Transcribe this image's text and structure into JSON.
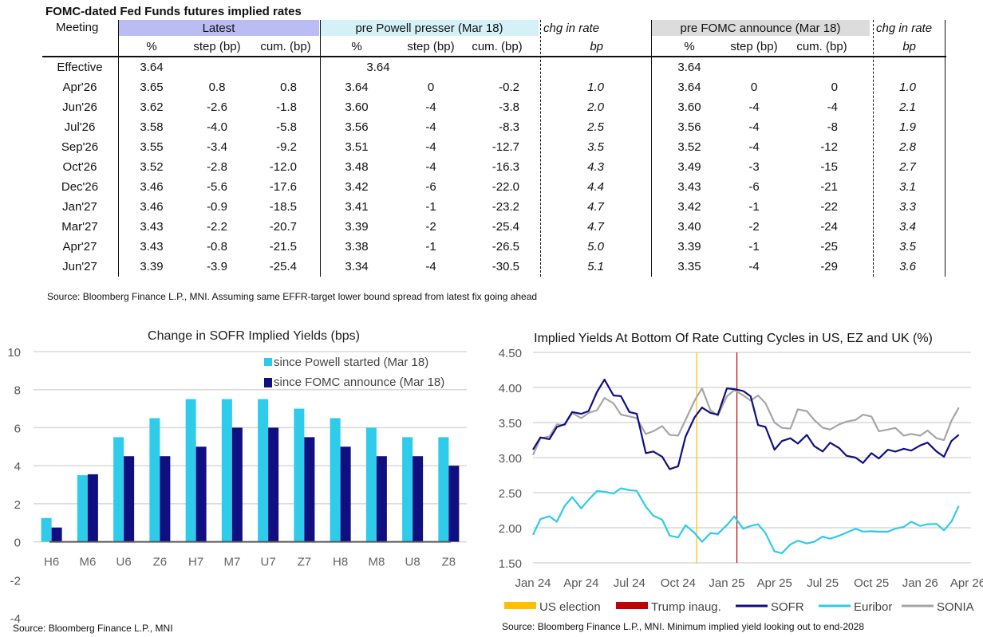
{
  "table": {
    "title": "FOMC-dated Fed Funds futures implied rates",
    "header_meeting": "Meeting",
    "groups": {
      "latest": "Latest",
      "powell": "pre Powell presser (Mar 18)",
      "chg1": "chg in rate",
      "fomc": "pre FOMC announce (Mar 18)",
      "chg2": "chg in rate"
    },
    "subheaders": {
      "pct": "%",
      "step": "step (bp)",
      "cum": "cum. (bp)",
      "bp": "bp"
    },
    "colors": {
      "latest": "#bcbcf4",
      "powell": "#d5f1f8",
      "fomc": "#dcdcdc"
    },
    "rows": [
      {
        "meeting": "Effective",
        "l_pct": "3.64",
        "l_step": "",
        "l_cum": "",
        "p_pct": "3.64",
        "p_step": "",
        "p_cum": "",
        "chg1": "",
        "f_pct": "3.64",
        "f_step": "",
        "f_cum": "",
        "chg2": ""
      },
      {
        "meeting": "Apr'26",
        "l_pct": "3.65",
        "l_step": "0.8",
        "l_cum": "0.8",
        "p_pct": "3.64",
        "p_step": "0",
        "p_cum": "-0.2",
        "chg1": "1.0",
        "f_pct": "3.64",
        "f_step": "0",
        "f_cum": "0",
        "chg2": "1.0"
      },
      {
        "meeting": "Jun'26",
        "l_pct": "3.62",
        "l_step": "-2.6",
        "l_cum": "-1.8",
        "p_pct": "3.60",
        "p_step": "-4",
        "p_cum": "-3.8",
        "chg1": "2.0",
        "f_pct": "3.60",
        "f_step": "-4",
        "f_cum": "-4",
        "chg2": "2.1"
      },
      {
        "meeting": "Jul'26",
        "l_pct": "3.58",
        "l_step": "-4.0",
        "l_cum": "-5.8",
        "p_pct": "3.56",
        "p_step": "-4",
        "p_cum": "-8.3",
        "chg1": "2.5",
        "f_pct": "3.56",
        "f_step": "-4",
        "f_cum": "-8",
        "chg2": "1.9"
      },
      {
        "meeting": "Sep'26",
        "l_pct": "3.55",
        "l_step": "-3.4",
        "l_cum": "-9.2",
        "p_pct": "3.51",
        "p_step": "-4",
        "p_cum": "-12.7",
        "chg1": "3.5",
        "f_pct": "3.52",
        "f_step": "-4",
        "f_cum": "-12",
        "chg2": "2.8"
      },
      {
        "meeting": "Oct'26",
        "l_pct": "3.52",
        "l_step": "-2.8",
        "l_cum": "-12.0",
        "p_pct": "3.48",
        "p_step": "-4",
        "p_cum": "-16.3",
        "chg1": "4.3",
        "f_pct": "3.49",
        "f_step": "-3",
        "f_cum": "-15",
        "chg2": "2.7"
      },
      {
        "meeting": "Dec'26",
        "l_pct": "3.46",
        "l_step": "-5.6",
        "l_cum": "-17.6",
        "p_pct": "3.42",
        "p_step": "-6",
        "p_cum": "-22.0",
        "chg1": "4.4",
        "f_pct": "3.43",
        "f_step": "-6",
        "f_cum": "-21",
        "chg2": "3.1"
      },
      {
        "meeting": "Jan'27",
        "l_pct": "3.46",
        "l_step": "-0.9",
        "l_cum": "-18.5",
        "p_pct": "3.41",
        "p_step": "-1",
        "p_cum": "-23.2",
        "chg1": "4.7",
        "f_pct": "3.42",
        "f_step": "-1",
        "f_cum": "-22",
        "chg2": "3.3"
      },
      {
        "meeting": "Mar'27",
        "l_pct": "3.43",
        "l_step": "-2.2",
        "l_cum": "-20.7",
        "p_pct": "3.39",
        "p_step": "-2",
        "p_cum": "-25.4",
        "chg1": "4.7",
        "f_pct": "3.40",
        "f_step": "-2",
        "f_cum": "-24",
        "chg2": "3.4"
      },
      {
        "meeting": "Apr'27",
        "l_pct": "3.43",
        "l_step": "-0.8",
        "l_cum": "-21.5",
        "p_pct": "3.38",
        "p_step": "-1",
        "p_cum": "-26.5",
        "chg1": "5.0",
        "f_pct": "3.39",
        "f_step": "-1",
        "f_cum": "-25",
        "chg2": "3.5"
      },
      {
        "meeting": "Jun'27",
        "l_pct": "3.39",
        "l_step": "-3.9",
        "l_cum": "-25.4",
        "p_pct": "3.34",
        "p_step": "-4",
        "p_cum": "-30.5",
        "chg1": "5.1",
        "f_pct": "3.35",
        "f_step": "-4",
        "f_cum": "-29",
        "chg2": "3.6"
      }
    ],
    "source": "Source: Bloomberg Finance L.P., MNI. Assuming same  EFFR-target lower bound spread from latest fix going ahead"
  },
  "chart_data": [
    {
      "type": "bar",
      "title": "Change in SOFR Implied Yields (bps)",
      "xlabel": "",
      "ylabel": "",
      "ylim": [
        -4,
        10
      ],
      "yticks": [
        10,
        8,
        6,
        4,
        2,
        0,
        -2,
        -4
      ],
      "grid": true,
      "legend": "top-right",
      "categories": [
        "H6",
        "M6",
        "U6",
        "Z6",
        "H7",
        "M7",
        "U7",
        "Z7",
        "H8",
        "M8",
        "U8",
        "Z8"
      ],
      "series": [
        {
          "name": "since Powell started (Mar 18)",
          "color": "#2ecbea",
          "values": [
            1.25,
            3.5,
            5.5,
            6.5,
            7.5,
            7.5,
            7.5,
            7.0,
            6.5,
            6.0,
            5.5,
            5.5
          ]
        },
        {
          "name": "since FOMC announce (Mar 18)",
          "color": "#0f0f82",
          "values": [
            0.75,
            3.55,
            4.5,
            4.5,
            5.0,
            6.0,
            6.0,
            5.5,
            5.0,
            4.5,
            4.5,
            4.0
          ]
        }
      ],
      "source": "Source: Bloomberg Finance L.P., MNI"
    },
    {
      "type": "line",
      "title": "Implied Yields At Bottom Of Rate Cutting Cycles in US, EZ and UK (%)",
      "xlabel": "",
      "ylabel": "",
      "ylim": [
        1.5,
        4.5
      ],
      "yticks": [
        "4.50",
        "4.00",
        "3.50",
        "3.00",
        "2.50",
        "2.00",
        "1.50"
      ],
      "grid": true,
      "legend": "bottom",
      "xlim": [
        "2024-01-01",
        "2026-04-01"
      ],
      "xticks": [
        {
          "label": "Jan 24",
          "date": "2024-01-01"
        },
        {
          "label": "Apr 24",
          "date": "2024-04-01"
        },
        {
          "label": "Jul 24",
          "date": "2024-07-01"
        },
        {
          "label": "Oct 24",
          "date": "2024-10-01"
        },
        {
          "label": "Jan 25",
          "date": "2025-01-01"
        },
        {
          "label": "Apr 25",
          "date": "2025-04-01"
        },
        {
          "label": "Jul 25",
          "date": "2025-07-01"
        },
        {
          "label": "Oct 25",
          "date": "2025-10-01"
        },
        {
          "label": "Jan 26",
          "date": "2026-01-01"
        },
        {
          "label": "Apr 26",
          "date": "2026-04-01"
        }
      ],
      "events": [
        {
          "name": "US election",
          "date": "2024-11-05",
          "color": "#ffc000"
        },
        {
          "name": "Trump inaug.",
          "date": "2025-01-20",
          "color": "#c00000"
        }
      ],
      "x": [
        "2024-01-01",
        "2024-01-15",
        "2024-02-01",
        "2024-02-15",
        "2024-03-01",
        "2024-03-15",
        "2024-04-01",
        "2024-04-15",
        "2024-05-01",
        "2024-05-15",
        "2024-06-01",
        "2024-06-15",
        "2024-07-01",
        "2024-07-15",
        "2024-08-01",
        "2024-08-15",
        "2024-09-01",
        "2024-09-15",
        "2024-10-01",
        "2024-10-15",
        "2024-11-01",
        "2024-11-15",
        "2024-12-01",
        "2024-12-15",
        "2025-01-01",
        "2025-01-15",
        "2025-02-01",
        "2025-02-15",
        "2025-03-01",
        "2025-03-15",
        "2025-04-01",
        "2025-04-15",
        "2025-05-01",
        "2025-05-15",
        "2025-06-01",
        "2025-06-15",
        "2025-07-01",
        "2025-07-15",
        "2025-08-01",
        "2025-08-15",
        "2025-09-01",
        "2025-09-15",
        "2025-10-01",
        "2025-10-15",
        "2025-11-01",
        "2025-11-15",
        "2025-12-01",
        "2025-12-15",
        "2026-01-01",
        "2026-01-15",
        "2026-02-01",
        "2026-02-15",
        "2026-03-01",
        "2026-03-15"
      ],
      "series": [
        {
          "name": "SOFR",
          "color": "#0f0f82",
          "values": [
            3.15,
            3.3,
            3.25,
            3.4,
            3.5,
            3.65,
            3.6,
            3.7,
            3.95,
            4.1,
            3.85,
            3.9,
            3.65,
            3.6,
            3.1,
            3.1,
            3.0,
            2.8,
            2.9,
            3.3,
            3.55,
            3.75,
            3.65,
            3.6,
            3.95,
            4.0,
            3.95,
            3.85,
            3.5,
            3.45,
            3.1,
            3.2,
            3.3,
            3.2,
            3.3,
            3.2,
            3.1,
            3.2,
            3.1,
            3.05,
            3.0,
            2.9,
            3.1,
            3.0,
            3.1,
            3.05,
            3.15,
            3.1,
            3.15,
            3.25,
            3.1,
            3.0,
            3.2,
            3.35
          ]
        },
        {
          "name": "Euribor",
          "color": "#2ecbea",
          "values": [
            1.9,
            2.1,
            2.2,
            2.1,
            2.3,
            2.4,
            2.3,
            2.4,
            2.5,
            2.55,
            2.5,
            2.55,
            2.5,
            2.55,
            2.3,
            2.15,
            2.15,
            1.9,
            1.85,
            2.0,
            1.95,
            1.8,
            1.9,
            1.95,
            2.05,
            2.15,
            1.95,
            2.05,
            2.05,
            1.9,
            1.7,
            1.65,
            1.75,
            1.78,
            1.8,
            1.8,
            1.85,
            1.88,
            1.9,
            1.92,
            1.95,
            1.97,
            1.95,
            1.92,
            1.98,
            2.0,
            2.0,
            2.05,
            2.05,
            2.05,
            2.03,
            2.0,
            2.1,
            2.3
          ]
        },
        {
          "name": "SONIA",
          "color": "#a6a6a6",
          "values": [
            3.0,
            3.3,
            3.3,
            3.45,
            3.5,
            3.65,
            3.55,
            3.6,
            3.7,
            3.85,
            3.75,
            3.65,
            3.6,
            3.55,
            3.3,
            3.4,
            3.45,
            3.3,
            3.35,
            3.55,
            3.8,
            3.95,
            3.7,
            3.6,
            3.85,
            4.0,
            3.9,
            3.8,
            3.85,
            3.8,
            3.5,
            3.4,
            3.45,
            3.7,
            3.65,
            3.5,
            3.45,
            3.4,
            3.45,
            3.55,
            3.55,
            3.6,
            3.55,
            3.4,
            3.4,
            3.4,
            3.35,
            3.35,
            3.3,
            3.35,
            3.3,
            3.25,
            3.5,
            3.75
          ]
        }
      ],
      "source": "Source: Bloomberg Finance L.P., MNI. Minimum implied yield looking out to end-2028"
    }
  ]
}
